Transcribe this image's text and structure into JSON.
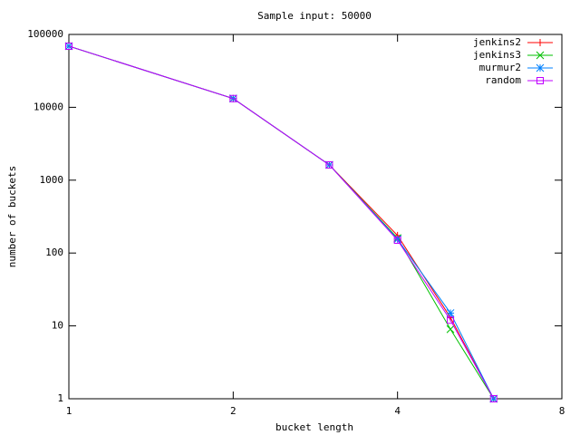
{
  "chart_data": {
    "type": "line",
    "title": "Sample input: 50000",
    "x_label": "bucket length",
    "y_label": "number of buckets",
    "x": [
      1,
      2,
      3,
      4,
      5,
      6
    ],
    "series": [
      {
        "name": "jenkins2",
        "color": "#ff0000",
        "marker": "plus",
        "values": [
          69000,
          13200,
          1620,
          174,
          13,
          1
        ]
      },
      {
        "name": "jenkins3",
        "color": "#00c000",
        "marker": "cross",
        "values": [
          69000,
          13200,
          1620,
          160,
          9,
          1
        ]
      },
      {
        "name": "murmur2",
        "color": "#0080ff",
        "marker": "star",
        "values": [
          69000,
          13200,
          1620,
          155,
          15,
          1
        ]
      },
      {
        "name": "random",
        "color": "#c000ff",
        "marker": "square",
        "values": [
          69000,
          13200,
          1620,
          150,
          12,
          1
        ]
      }
    ],
    "xlim": [
      1,
      8
    ],
    "xticks": [
      1,
      2,
      4,
      8
    ],
    "xlog": true,
    "ylim": [
      1,
      100000
    ],
    "yticks": [
      1,
      10,
      100,
      1000,
      10000,
      100000
    ],
    "ylog": true,
    "legend": "top-right"
  }
}
